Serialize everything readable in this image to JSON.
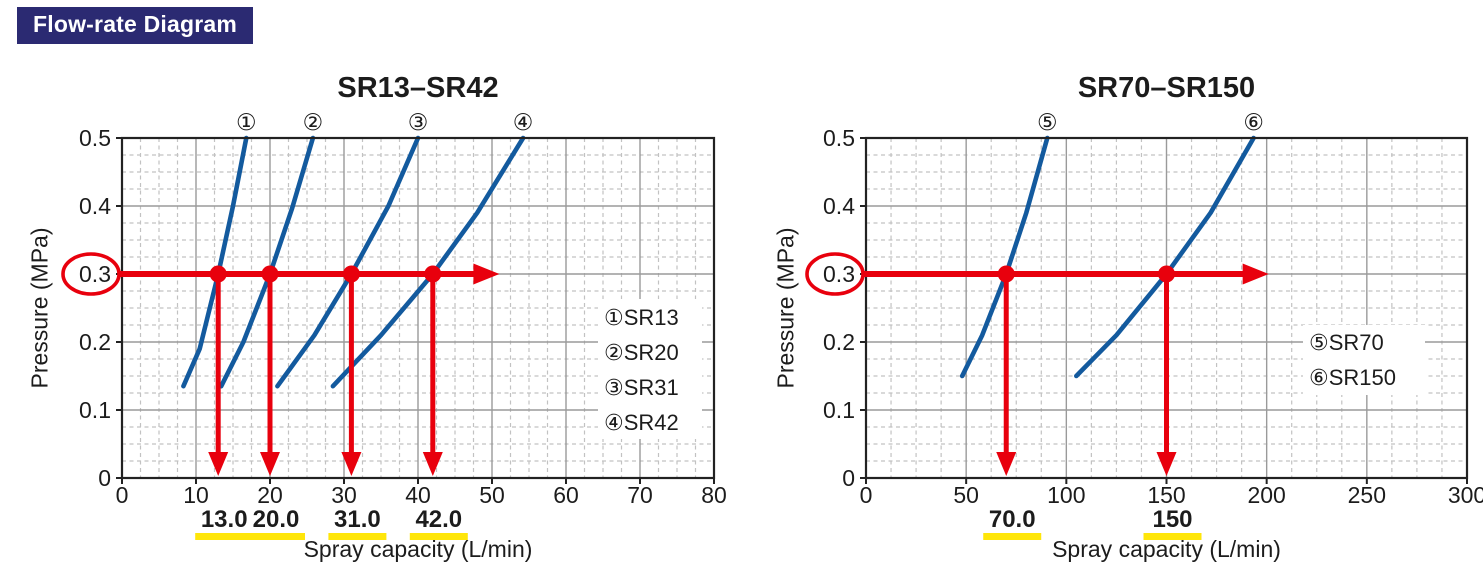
{
  "header": {
    "title": "Flow-rate Diagram"
  },
  "colors": {
    "header_bg": "#2b2a72",
    "header_fg": "#ffffff",
    "curve_blue": "#135a9e",
    "annotation_red": "#e8000d",
    "value_blue": "#1414cc",
    "underline_yellow": "#ffe60a",
    "grid_major": "#9a9a9a",
    "grid_minor": "#c2c2c2",
    "plot_border": "#222222",
    "text": "#1c1c1c"
  },
  "chart_data": [
    {
      "type": "line",
      "title": "SR13–SR42",
      "xlabel": "Spray capacity (L/min)",
      "ylabel": "Pressure (MPa)",
      "xlim": [
        0,
        80
      ],
      "ylim": [
        0,
        0.5
      ],
      "x_ticks": [
        0,
        10,
        20,
        30,
        40,
        50,
        60,
        70,
        80
      ],
      "y_ticks": [
        0,
        0.1,
        0.2,
        0.3,
        0.4,
        0.5
      ],
      "x_minor_step": 2.5,
      "y_minor_step": 0.025,
      "grid": true,
      "legend_position": "lower-right",
      "series": [
        {
          "marker": "①",
          "name": "SR13",
          "points": [
            [
              8.3,
              0.135
            ],
            [
              10.5,
              0.19
            ],
            [
              13,
              0.3
            ],
            [
              15,
              0.4
            ],
            [
              16.8,
              0.5
            ]
          ]
        },
        {
          "marker": "②",
          "name": "SR20",
          "points": [
            [
              13.4,
              0.135
            ],
            [
              16.4,
              0.2
            ],
            [
              20,
              0.3
            ],
            [
              23,
              0.397
            ],
            [
              25.8,
              0.5
            ]
          ]
        },
        {
          "marker": "③",
          "name": "SR31",
          "points": [
            [
              21,
              0.135
            ],
            [
              26,
              0.21
            ],
            [
              31,
              0.3
            ],
            [
              36,
              0.4
            ],
            [
              40,
              0.5
            ]
          ]
        },
        {
          "marker": "④",
          "name": "SR42",
          "points": [
            [
              28.5,
              0.135
            ],
            [
              35,
              0.21
            ],
            [
              42,
              0.3
            ],
            [
              48,
              0.39
            ],
            [
              54.2,
              0.5
            ]
          ]
        }
      ],
      "reading": {
        "pressure": 0.3,
        "circled_y_tick": "0.3",
        "arrow_to_x": 51,
        "flows": [
          13,
          20,
          31,
          42
        ],
        "value_labels": [
          "13.0",
          "20.0",
          "31.0",
          "42.0"
        ]
      }
    },
    {
      "type": "line",
      "title": "SR70–SR150",
      "xlabel": "Spray capacity (L/min)",
      "ylabel": "Pressure (MPa)",
      "xlim": [
        0,
        300
      ],
      "ylim": [
        0,
        0.5
      ],
      "x_ticks": [
        0,
        50,
        100,
        150,
        200,
        250,
        300
      ],
      "y_ticks": [
        0,
        0.1,
        0.2,
        0.3,
        0.4,
        0.5
      ],
      "x_minor_step": 12.5,
      "y_minor_step": 0.025,
      "grid": true,
      "legend_position": "lower-right",
      "series": [
        {
          "marker": "⑤",
          "name": "SR70",
          "points": [
            [
              48,
              0.15
            ],
            [
              58,
              0.21
            ],
            [
              70,
              0.3
            ],
            [
              80,
              0.39
            ],
            [
              90.5,
              0.5
            ]
          ]
        },
        {
          "marker": "⑥",
          "name": "SR150",
          "points": [
            [
              105,
              0.15
            ],
            [
              125,
              0.21
            ],
            [
              150,
              0.3
            ],
            [
              172,
              0.39
            ],
            [
              193.5,
              0.5
            ]
          ]
        }
      ],
      "reading": {
        "pressure": 0.3,
        "circled_y_tick": "0.3",
        "arrow_to_x": 201,
        "flows": [
          70,
          150
        ],
        "value_labels": [
          "70.0",
          "150"
        ]
      }
    }
  ]
}
